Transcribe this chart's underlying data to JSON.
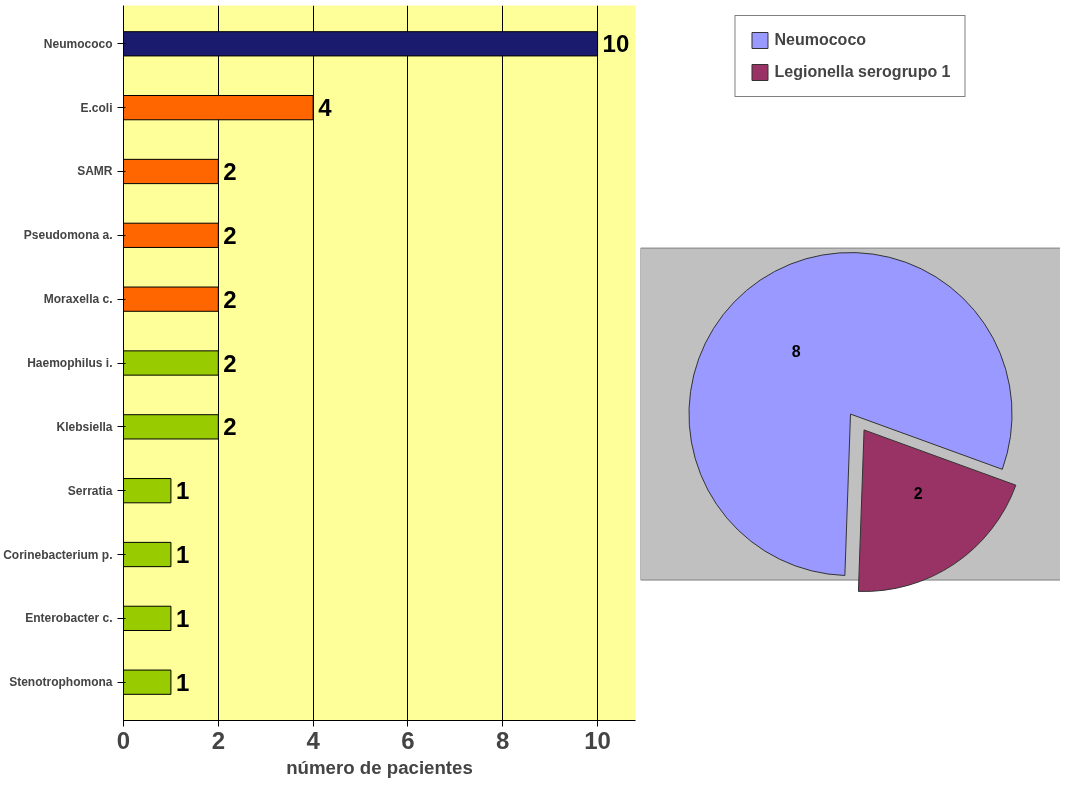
{
  "chart_data": [
    {
      "type": "bar",
      "orientation": "horizontal",
      "xlabel": "número de pacientes",
      "categories": [
        "Neumococo",
        "E.coli",
        "SAMR",
        "Pseudomona a.",
        "Moraxella c.",
        "Haemophilus i.",
        "Klebsiella",
        "Serratia",
        "Corinebacterium p.",
        "Enterobacter c.",
        "Stenotrophomona"
      ],
      "values": [
        10,
        4,
        2,
        2,
        2,
        2,
        2,
        1,
        1,
        1,
        1
      ],
      "colors": [
        "#1a1a6e",
        "#ff6600",
        "#ff6600",
        "#ff6600",
        "#ff6600",
        "#99cc00",
        "#99cc00",
        "#99cc00",
        "#99cc00",
        "#99cc00",
        "#99cc00"
      ],
      "xlim": [
        0,
        10
      ],
      "xticks": [
        0,
        2,
        4,
        6,
        8,
        10
      ],
      "grid": "x",
      "data_labels": true
    },
    {
      "type": "pie",
      "categories": [
        "Neumococo",
        "Legionella serogrupo 1"
      ],
      "values": [
        8,
        2
      ],
      "colors": [
        "#9999ff",
        "#993366"
      ],
      "data_labels": true,
      "legend": "top"
    }
  ]
}
